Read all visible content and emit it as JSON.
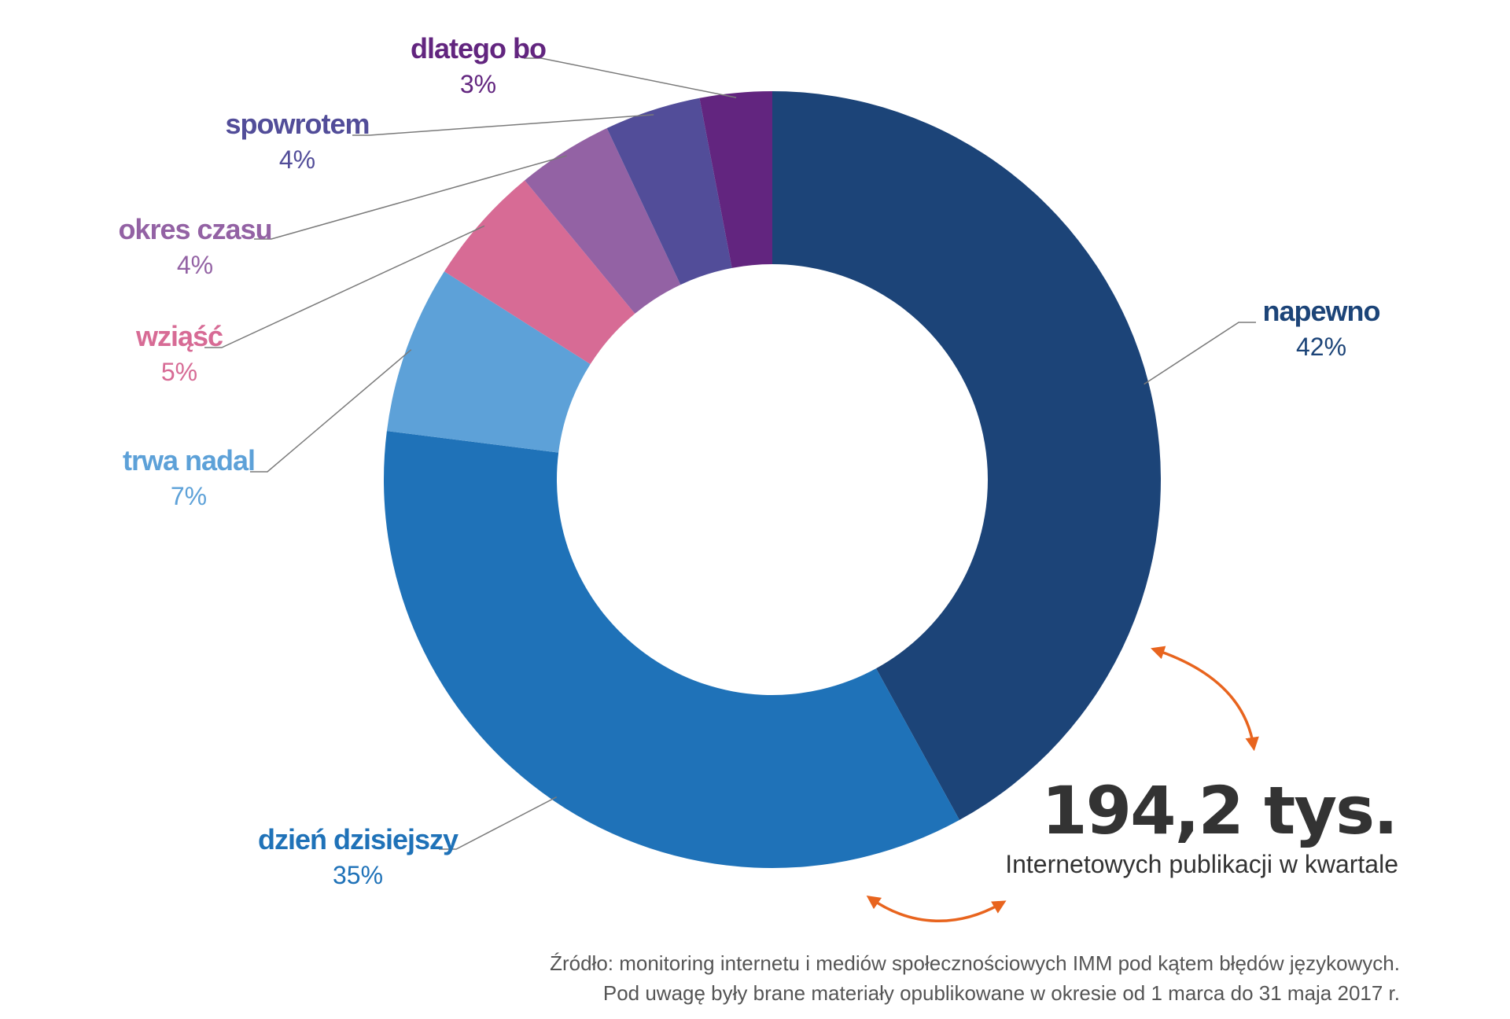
{
  "chart_data": {
    "type": "pie",
    "style": "donut",
    "slices": [
      {
        "name": "napewno",
        "pct_label": "42%",
        "value": 42,
        "color": "#1c4478"
      },
      {
        "name": "dzień dzisiejszy",
        "pct_label": "35%",
        "value": 35,
        "color": "#1f72b8"
      },
      {
        "name": "trwa nadal",
        "pct_label": "7%",
        "value": 7,
        "color": "#5da1d8"
      },
      {
        "name": "wziąść",
        "pct_label": "5%",
        "value": 5,
        "color": "#d76b95"
      },
      {
        "name": "okres czasu",
        "pct_label": "4%",
        "value": 4,
        "color": "#9362a4"
      },
      {
        "name": "spowrotem",
        "pct_label": "4%",
        "value": 4,
        "color": "#524d99"
      },
      {
        "name": "dlatego bo",
        "pct_label": "3%",
        "value": 3,
        "color": "#62257f"
      }
    ],
    "legend": "none"
  },
  "summary": {
    "headline": "194,2 tys.",
    "caption": "Internetowych publikacji w kwartale",
    "arrow_color": "#e8641e"
  },
  "source": {
    "line1": "Źródło: monitoring internetu i mediów społecznościowych IMM pod kątem błędów językowych.",
    "line2": "Pod uwagę były brane materiały opublikowane w okresie od 1 marca do 31 maja 2017 r."
  }
}
